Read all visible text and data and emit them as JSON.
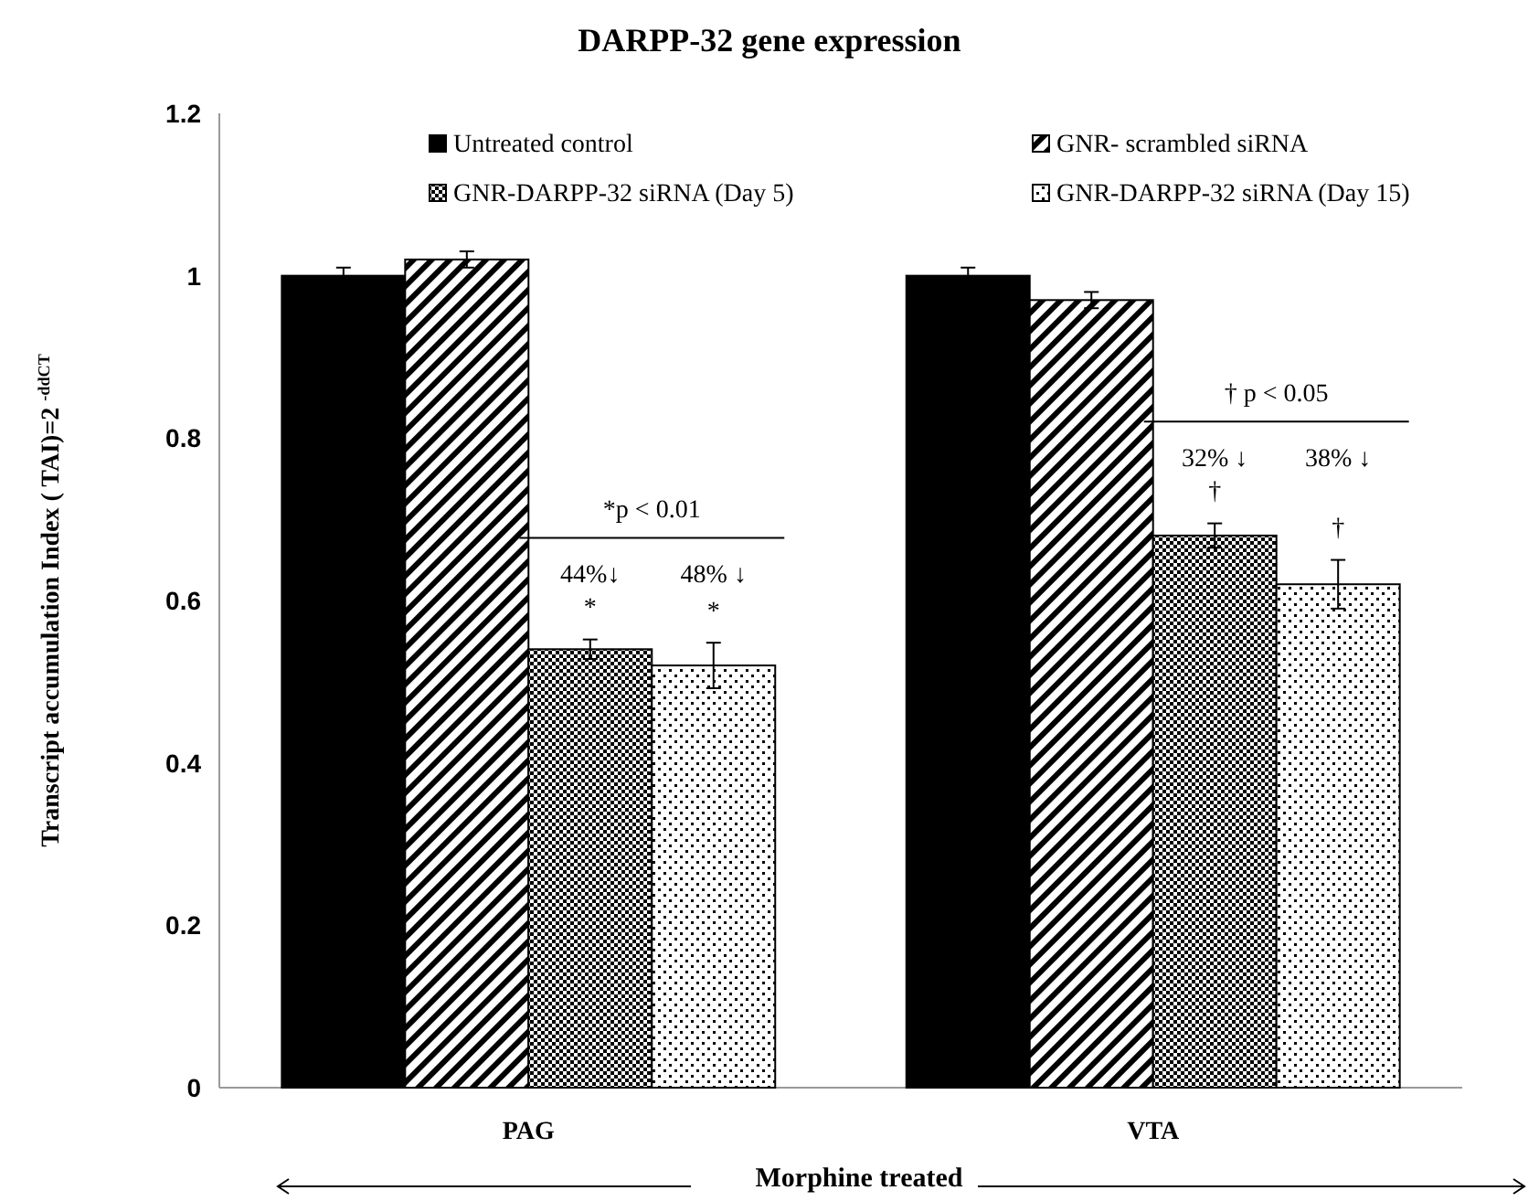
{
  "chart_data": {
    "type": "bar",
    "title": "DARPP-32 gene expression",
    "xlabel": "Morphine treated",
    "ylabel": "Transcript accumulation Index ( TAI)=2 $^{-ddCT}$",
    "categories": [
      "PAG",
      "VTA"
    ],
    "series": [
      {
        "name": "Untreated control",
        "color": "#000000",
        "values": [
          1.0,
          1.0
        ],
        "errors": [
          0.01,
          0.01
        ]
      },
      {
        "name": "GNR- scrambled siRNA",
        "color": "#000000",
        "values": [
          1.02,
          0.97
        ],
        "errors": [
          0.01,
          0.01
        ]
      },
      {
        "name": "GNR-DARPP-32 siRNA (Day 5)",
        "color": "#000000",
        "values": [
          0.54,
          0.68
        ],
        "errors": [
          0.012,
          0.015
        ]
      },
      {
        "name": "GNR-DARPP-32 siRNA (Day 15)",
        "color": "#000000",
        "values": [
          0.52,
          0.62
        ],
        "errors": [
          0.028,
          0.03
        ]
      }
    ],
    "ylim": [
      0,
      1.2
    ],
    "yticks": [
      0,
      0.2,
      0.4,
      0.6,
      0.8,
      1,
      1.2
    ],
    "grid": false,
    "legend": "top",
    "annotations": [
      "*p < 0.01",
      "44%↓",
      "48% ↓",
      "*",
      "*",
      "† p < 0.05",
      "32% ↓",
      "38% ↓",
      "†",
      "†"
    ]
  }
}
